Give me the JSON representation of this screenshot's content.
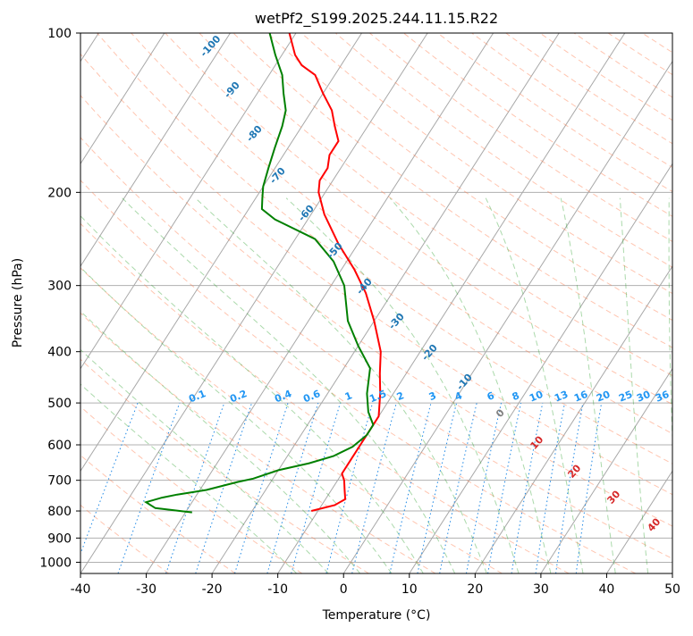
{
  "chart_data": {
    "type": "line",
    "subtype": "skew-T log-P sounding",
    "title": "wetPf2_S199.2025.244.11.15.R22",
    "xlabel": "Temperature (°C)",
    "ylabel": "Pressure (hPa)",
    "xlim": [
      -40,
      50
    ],
    "ylim": [
      1050,
      100
    ],
    "y_scale": "log",
    "x_ticks": [
      -40,
      -30,
      -20,
      -10,
      0,
      10,
      20,
      30,
      40,
      50
    ],
    "y_ticks": [
      100,
      200,
      300,
      400,
      500,
      600,
      700,
      800,
      900,
      1000
    ],
    "grid": true,
    "dry_adiabat_labels": [
      "-100",
      "-90",
      "-80",
      "-70",
      "-60",
      "-50",
      "-40",
      "-30",
      "-20",
      "-10"
    ],
    "mixing_ratio_labels": [
      "0.1",
      "0.2",
      "0.4",
      "0.6",
      "1",
      "1.5",
      "2",
      "3",
      "4",
      "6",
      "8",
      "10",
      "13",
      "16",
      "20",
      "25",
      "30",
      "36"
    ],
    "moist_adiabat_labels": [
      "0",
      "10",
      "20",
      "30",
      "40"
    ],
    "colors": {
      "temperature": "#ff0000",
      "dewpoint": "#008000",
      "dry_adiabat": "#ff7f50",
      "moist_adiabat": "#2ca02c",
      "mixing_ratio": "#1e88e5",
      "isotherm": "#808080",
      "dry_label": "#1f77b4",
      "mixing_label": "#2196f3",
      "moist_label_zero": "#808080",
      "moist_label": "#d62728"
    },
    "series": [
      {
        "key": "temperature",
        "points": [
          [
            -11,
            800
          ],
          [
            -8,
            780
          ],
          [
            -7,
            760
          ],
          [
            -8,
            730
          ],
          [
            -9,
            700
          ],
          [
            -10,
            680
          ],
          [
            -10,
            640
          ],
          [
            -10,
            600
          ],
          [
            -10,
            560
          ],
          [
            -10,
            530
          ],
          [
            -12,
            480
          ],
          [
            -14,
            440
          ],
          [
            -16,
            400
          ],
          [
            -20,
            350
          ],
          [
            -24,
            310
          ],
          [
            -28,
            280
          ],
          [
            -33,
            250
          ],
          [
            -38,
            220
          ],
          [
            -41,
            200
          ],
          [
            -42,
            190
          ],
          [
            -42,
            180
          ],
          [
            -43,
            170
          ],
          [
            -43,
            160
          ],
          [
            -45,
            150
          ],
          [
            -47,
            140
          ],
          [
            -50,
            130
          ],
          [
            -53,
            120
          ],
          [
            -56,
            115
          ],
          [
            -58,
            110
          ],
          [
            -61,
            100
          ]
        ]
      },
      {
        "key": "dewpoint",
        "points": [
          [
            -29,
            805
          ],
          [
            -35,
            790
          ],
          [
            -37,
            770
          ],
          [
            -35,
            755
          ],
          [
            -33,
            745
          ],
          [
            -29,
            730
          ],
          [
            -25,
            705
          ],
          [
            -23,
            695
          ],
          [
            -20,
            670
          ],
          [
            -16,
            650
          ],
          [
            -13,
            630
          ],
          [
            -11,
            605
          ],
          [
            -10,
            575
          ],
          [
            -10,
            550
          ],
          [
            -12,
            520
          ],
          [
            -14,
            480
          ],
          [
            -16,
            430
          ],
          [
            -20,
            390
          ],
          [
            -24,
            350
          ],
          [
            -28,
            300
          ],
          [
            -32,
            270
          ],
          [
            -37,
            245
          ],
          [
            -45,
            225
          ],
          [
            -48,
            215
          ],
          [
            -49,
            205
          ],
          [
            -50,
            195
          ],
          [
            -51,
            180
          ],
          [
            -52,
            165
          ],
          [
            -53,
            150
          ],
          [
            -54,
            140
          ],
          [
            -56,
            130
          ],
          [
            -58,
            120
          ],
          [
            -61,
            110
          ],
          [
            -64,
            100
          ]
        ]
      }
    ]
  }
}
